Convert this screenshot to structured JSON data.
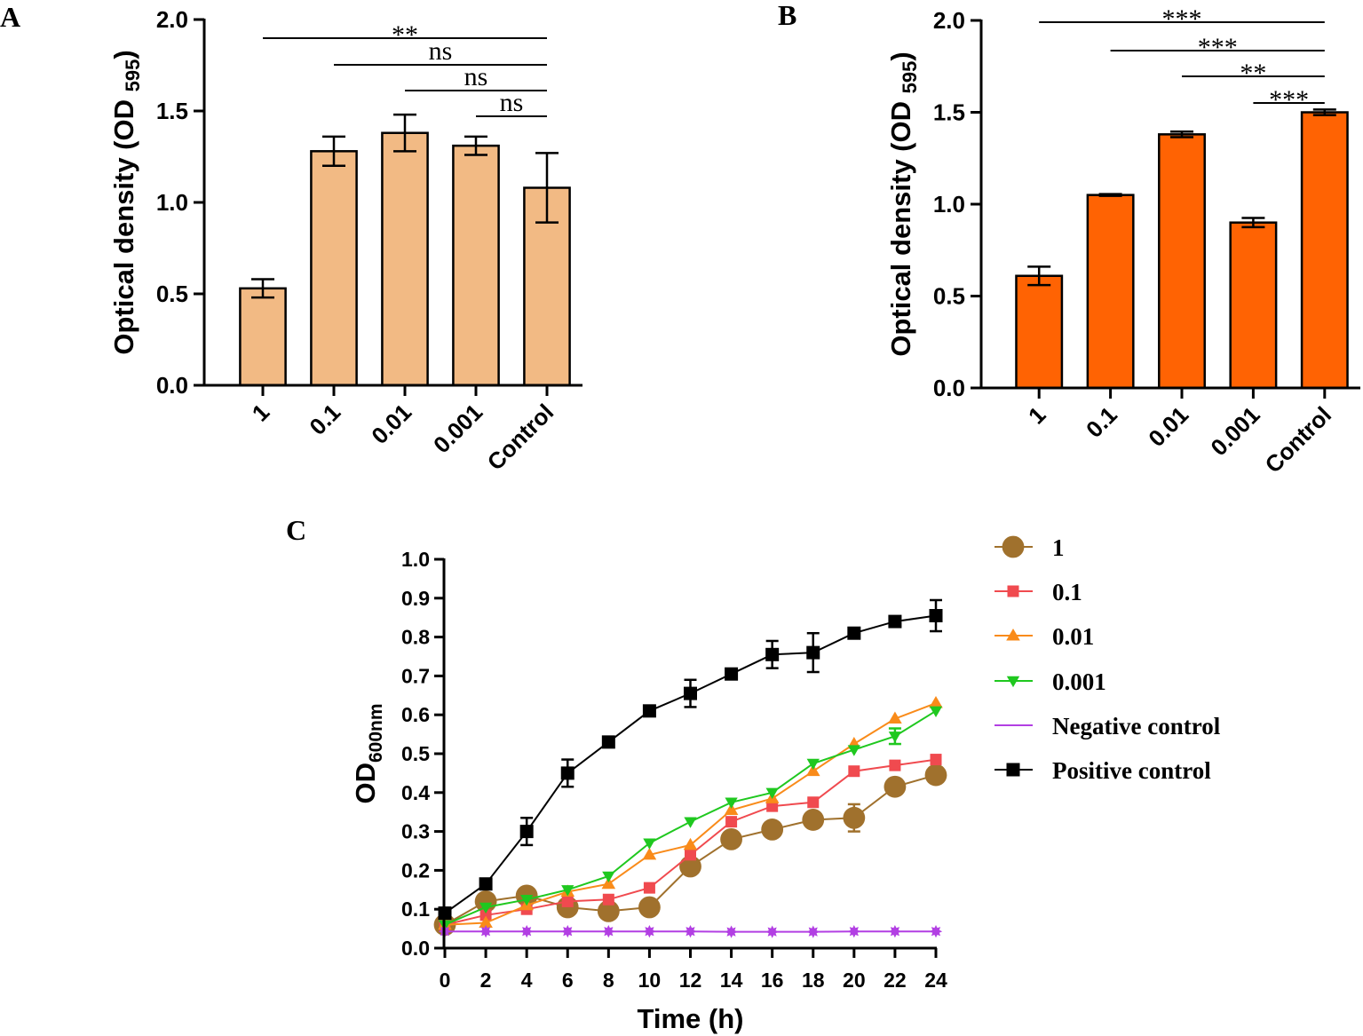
{
  "chart_data": [
    {
      "panel": "A",
      "type": "bar",
      "categories": [
        "1",
        "0.1",
        "0.01",
        "0.001",
        "Control"
      ],
      "values": [
        0.53,
        1.28,
        1.38,
        1.31,
        1.08
      ],
      "errors": [
        0.05,
        0.08,
        0.1,
        0.05,
        0.19
      ],
      "color": "#F2BA84",
      "ylabel": "Optical density (OD",
      "ylabel_sub": "595",
      "ylabel_close": ")",
      "ylim": [
        0,
        2.0
      ],
      "yticks": [
        "0.0",
        "0.5",
        "1.0",
        "1.5",
        "2.0"
      ],
      "significance": [
        {
          "from": 0,
          "to": 4,
          "label": "**"
        },
        {
          "from": 1,
          "to": 4,
          "label": "ns"
        },
        {
          "from": 2,
          "to": 4,
          "label": "ns"
        },
        {
          "from": 3,
          "to": 4,
          "label": "ns"
        }
      ]
    },
    {
      "panel": "B",
      "type": "bar",
      "categories": [
        "1",
        "0.1",
        "0.01",
        "0.001",
        "Control"
      ],
      "values": [
        0.61,
        1.05,
        1.38,
        0.9,
        1.5
      ],
      "errors": [
        0.05,
        0.005,
        0.015,
        0.025,
        0.015
      ],
      "color": "#FF6303",
      "ylabel": "Optical density (OD",
      "ylabel_sub": "595",
      "ylabel_close": ")",
      "ylim": [
        0,
        2.0
      ],
      "yticks": [
        "0.0",
        "0.5",
        "1.0",
        "1.5",
        "2.0"
      ],
      "significance": [
        {
          "from": 0,
          "to": 4,
          "label": "***"
        },
        {
          "from": 1,
          "to": 4,
          "label": "***"
        },
        {
          "from": 2,
          "to": 4,
          "label": "**"
        },
        {
          "from": 3,
          "to": 4,
          "label": "***"
        }
      ]
    },
    {
      "panel": "C",
      "type": "line",
      "xlabel": "Time (h)",
      "ylabel": "OD",
      "ylabel_sub": "600nm",
      "xlim": [
        0,
        24
      ],
      "ylim": [
        0,
        1.0
      ],
      "x": [
        0,
        2,
        4,
        6,
        8,
        10,
        12,
        14,
        16,
        18,
        20,
        22,
        24
      ],
      "xticks": [
        "0",
        "2",
        "4",
        "6",
        "8",
        "10",
        "12",
        "14",
        "16",
        "18",
        "20",
        "22",
        "24"
      ],
      "yticks": [
        "0.0",
        "0.1",
        "0.2",
        "0.3",
        "0.4",
        "0.5",
        "0.6",
        "0.7",
        "0.8",
        "0.9",
        "1.0"
      ],
      "series": [
        {
          "name": "1",
          "color": "#A0712D",
          "marker": "circle",
          "values": [
            0.06,
            0.12,
            0.135,
            0.105,
            0.095,
            0.105,
            0.21,
            0.28,
            0.305,
            0.33,
            0.335,
            0.415,
            0.445
          ],
          "errors": [
            0,
            0,
            0,
            0,
            0,
            0,
            0,
            0,
            0,
            0,
            0.035,
            0,
            0
          ]
        },
        {
          "name": "0.1",
          "color": "#F04A4F",
          "marker": "square",
          "values": [
            0.06,
            0.085,
            0.1,
            0.12,
            0.125,
            0.155,
            0.24,
            0.325,
            0.365,
            0.375,
            0.455,
            0.47,
            0.485
          ],
          "errors": [
            0,
            0,
            0,
            0,
            0,
            0,
            0,
            0,
            0,
            0,
            0,
            0,
            0
          ]
        },
        {
          "name": "0.01",
          "color": "#F98B1A",
          "marker": "triangle-up",
          "values": [
            0.06,
            0.065,
            0.11,
            0.145,
            0.165,
            0.24,
            0.265,
            0.355,
            0.385,
            0.455,
            0.525,
            0.59,
            0.63
          ],
          "errors": [
            0,
            0,
            0,
            0,
            0,
            0,
            0,
            0,
            0,
            0,
            0,
            0,
            0
          ]
        },
        {
          "name": "0.001",
          "color": "#1FC81F",
          "marker": "triangle-down",
          "values": [
            0.06,
            0.105,
            0.125,
            0.15,
            0.185,
            0.27,
            0.325,
            0.375,
            0.4,
            0.475,
            0.51,
            0.545,
            0.61
          ],
          "errors": [
            0,
            0,
            0,
            0,
            0,
            0,
            0,
            0,
            0,
            0,
            0,
            0.02,
            0
          ]
        },
        {
          "name": "Negative control",
          "color": "#B23FE3",
          "marker": "star",
          "values": [
            0.043,
            0.043,
            0.043,
            0.043,
            0.043,
            0.043,
            0.043,
            0.042,
            0.042,
            0.042,
            0.043,
            0.043,
            0.043
          ],
          "errors": [
            0,
            0,
            0,
            0,
            0,
            0,
            0,
            0,
            0,
            0,
            0,
            0,
            0
          ]
        },
        {
          "name": "Positive control",
          "color": "#000000",
          "marker": "square",
          "values": [
            0.09,
            0.165,
            0.3,
            0.45,
            0.53,
            0.61,
            0.655,
            0.705,
            0.755,
            0.76,
            0.81,
            0.84,
            0.855
          ],
          "errors": [
            0,
            0,
            0.035,
            0.035,
            0,
            0,
            0.035,
            0,
            0.035,
            0.05,
            0,
            0,
            0.04
          ]
        }
      ]
    }
  ]
}
